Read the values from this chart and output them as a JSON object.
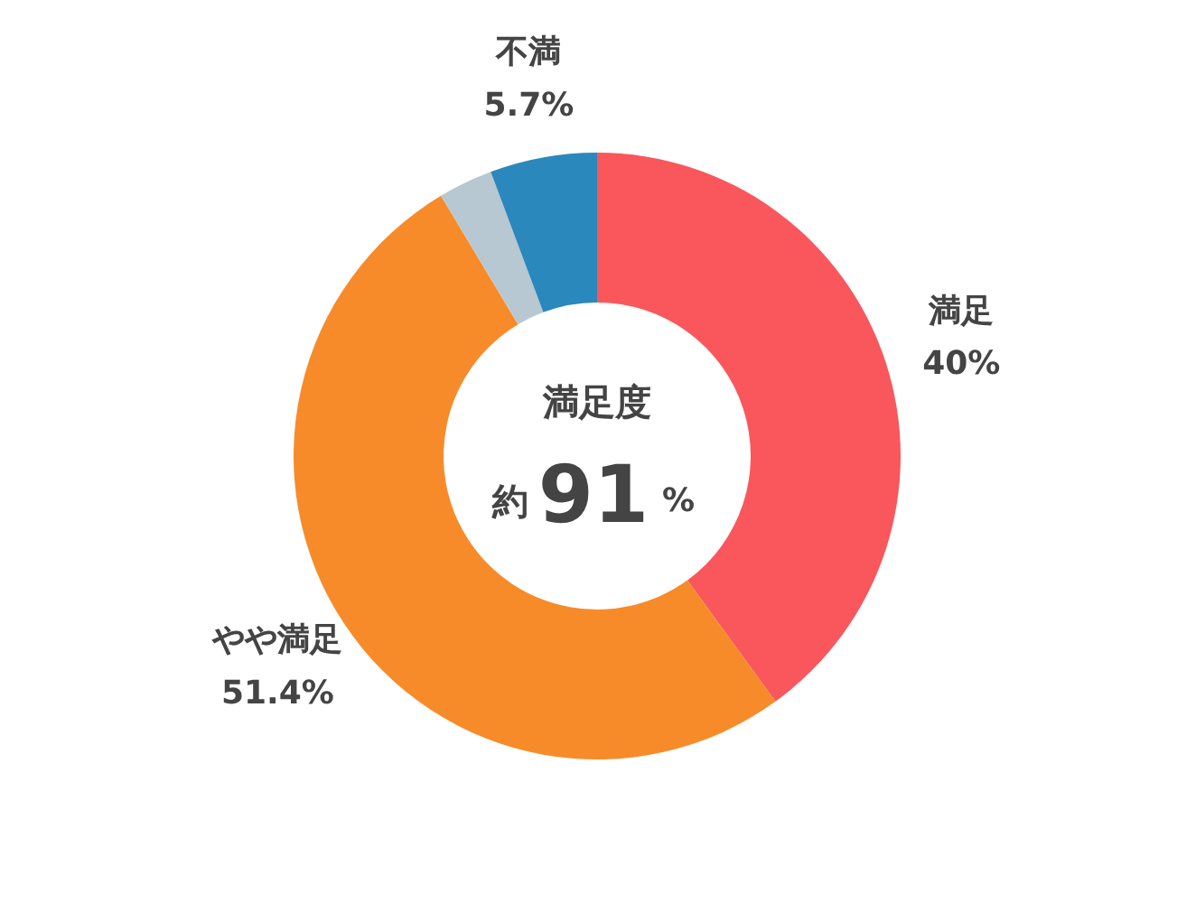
{
  "chart_data": {
    "type": "donut",
    "categories": [
      "満足",
      "やや満足",
      null,
      "不満"
    ],
    "values": [
      40,
      51.4,
      2.9,
      5.7
    ],
    "colors": [
      "#f9575c",
      "#f78b2a",
      "#b8c8d2",
      "#2b88bd"
    ],
    "value_labels": [
      "40%",
      "51.4%",
      null,
      "5.7%"
    ],
    "annotations": [
      "満足度",
      "約",
      "91",
      "%"
    ]
  }
}
